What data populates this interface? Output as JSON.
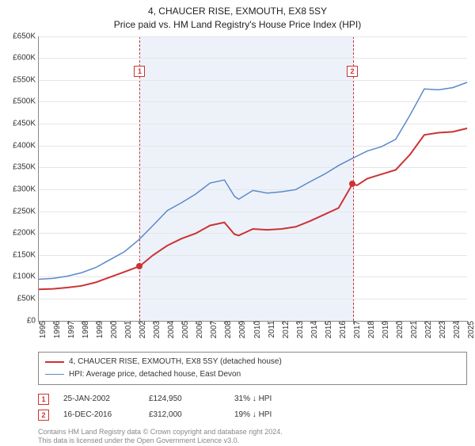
{
  "title": {
    "line1": "4, CHAUCER RISE, EXMOUTH, EX8 5SY",
    "line2": "Price paid vs. HM Land Registry's House Price Index (HPI)"
  },
  "chart": {
    "type": "line",
    "x_axis": {
      "min": 1995,
      "max": 2025,
      "ticks": [
        1995,
        1996,
        1997,
        1998,
        1999,
        2000,
        2001,
        2002,
        2003,
        2004,
        2005,
        2006,
        2007,
        2008,
        2009,
        2010,
        2011,
        2012,
        2013,
        2014,
        2015,
        2016,
        2017,
        2018,
        2019,
        2020,
        2021,
        2022,
        2023,
        2024,
        2025
      ],
      "label_fontsize": 10,
      "label_color": "#333333",
      "rotation": -90
    },
    "y_axis": {
      "min": 0,
      "max": 650000,
      "tick_step": 50000,
      "tick_labels": [
        "£0",
        "£50K",
        "£100K",
        "£150K",
        "£200K",
        "£250K",
        "£300K",
        "£350K",
        "£400K",
        "£450K",
        "£500K",
        "£550K",
        "£600K",
        "£650K"
      ],
      "label_fontsize": 10,
      "label_color": "#333333"
    },
    "grid_color": "#e5e5e5",
    "background_color": "#ffffff",
    "shaded_region": {
      "x_start": 2002.07,
      "x_end": 2016.96,
      "fill": "#edf2fa",
      "border_color": "#cc3333",
      "border_style": "dashed"
    },
    "series": [
      {
        "name": "price_paid",
        "label": "4, CHAUCER RISE, EXMOUTH, EX8 5SY (detached house)",
        "color": "#cc3333",
        "line_width": 2,
        "points": [
          [
            1995,
            72000
          ],
          [
            1996,
            73000
          ],
          [
            1997,
            76000
          ],
          [
            1998,
            80000
          ],
          [
            1999,
            88000
          ],
          [
            2000,
            100000
          ],
          [
            2001,
            112000
          ],
          [
            2002.07,
            124950
          ],
          [
            2003,
            150000
          ],
          [
            2004,
            172000
          ],
          [
            2005,
            188000
          ],
          [
            2006,
            200000
          ],
          [
            2007,
            218000
          ],
          [
            2008,
            225000
          ],
          [
            2008.7,
            198000
          ],
          [
            2009,
            195000
          ],
          [
            2010,
            210000
          ],
          [
            2011,
            208000
          ],
          [
            2012,
            210000
          ],
          [
            2013,
            215000
          ],
          [
            2014,
            228000
          ],
          [
            2015,
            243000
          ],
          [
            2016,
            258000
          ],
          [
            2016.96,
            312000
          ],
          [
            2017.3,
            310000
          ],
          [
            2018,
            325000
          ],
          [
            2019,
            335000
          ],
          [
            2020,
            345000
          ],
          [
            2021,
            380000
          ],
          [
            2022,
            425000
          ],
          [
            2023,
            430000
          ],
          [
            2024,
            432000
          ],
          [
            2025,
            440000
          ]
        ]
      },
      {
        "name": "hpi",
        "label": "HPI: Average price, detached house, East Devon",
        "color": "#5b89c9",
        "line_width": 1.5,
        "points": [
          [
            1995,
            95000
          ],
          [
            1996,
            97000
          ],
          [
            1997,
            102000
          ],
          [
            1998,
            110000
          ],
          [
            1999,
            122000
          ],
          [
            2000,
            140000
          ],
          [
            2001,
            158000
          ],
          [
            2002,
            185000
          ],
          [
            2003,
            218000
          ],
          [
            2004,
            252000
          ],
          [
            2005,
            270000
          ],
          [
            2006,
            290000
          ],
          [
            2007,
            315000
          ],
          [
            2008,
            322000
          ],
          [
            2008.7,
            285000
          ],
          [
            2009,
            278000
          ],
          [
            2010,
            298000
          ],
          [
            2011,
            292000
          ],
          [
            2012,
            295000
          ],
          [
            2013,
            300000
          ],
          [
            2014,
            318000
          ],
          [
            2015,
            335000
          ],
          [
            2016,
            355000
          ],
          [
            2017,
            372000
          ],
          [
            2018,
            388000
          ],
          [
            2019,
            398000
          ],
          [
            2020,
            415000
          ],
          [
            2021,
            470000
          ],
          [
            2022,
            530000
          ],
          [
            2023,
            528000
          ],
          [
            2024,
            533000
          ],
          [
            2025,
            545000
          ]
        ]
      }
    ],
    "markers": [
      {
        "id": "1",
        "x": 2002.07,
        "y_box": 570000,
        "y_dot": 124950
      },
      {
        "id": "2",
        "x": 2016.96,
        "y_box": 570000,
        "y_dot": 312000
      }
    ]
  },
  "legend": {
    "border_color": "#888888",
    "fontsize": 10
  },
  "transactions": [
    {
      "id": "1",
      "date": "25-JAN-2002",
      "price": "£124,950",
      "delta": "31% ↓ HPI"
    },
    {
      "id": "2",
      "date": "16-DEC-2016",
      "price": "£312,000",
      "delta": "19% ↓ HPI"
    }
  ],
  "footer": {
    "line1": "Contains HM Land Registry data © Crown copyright and database right 2024.",
    "line2": "This data is licensed under the Open Government Licence v3.0."
  }
}
